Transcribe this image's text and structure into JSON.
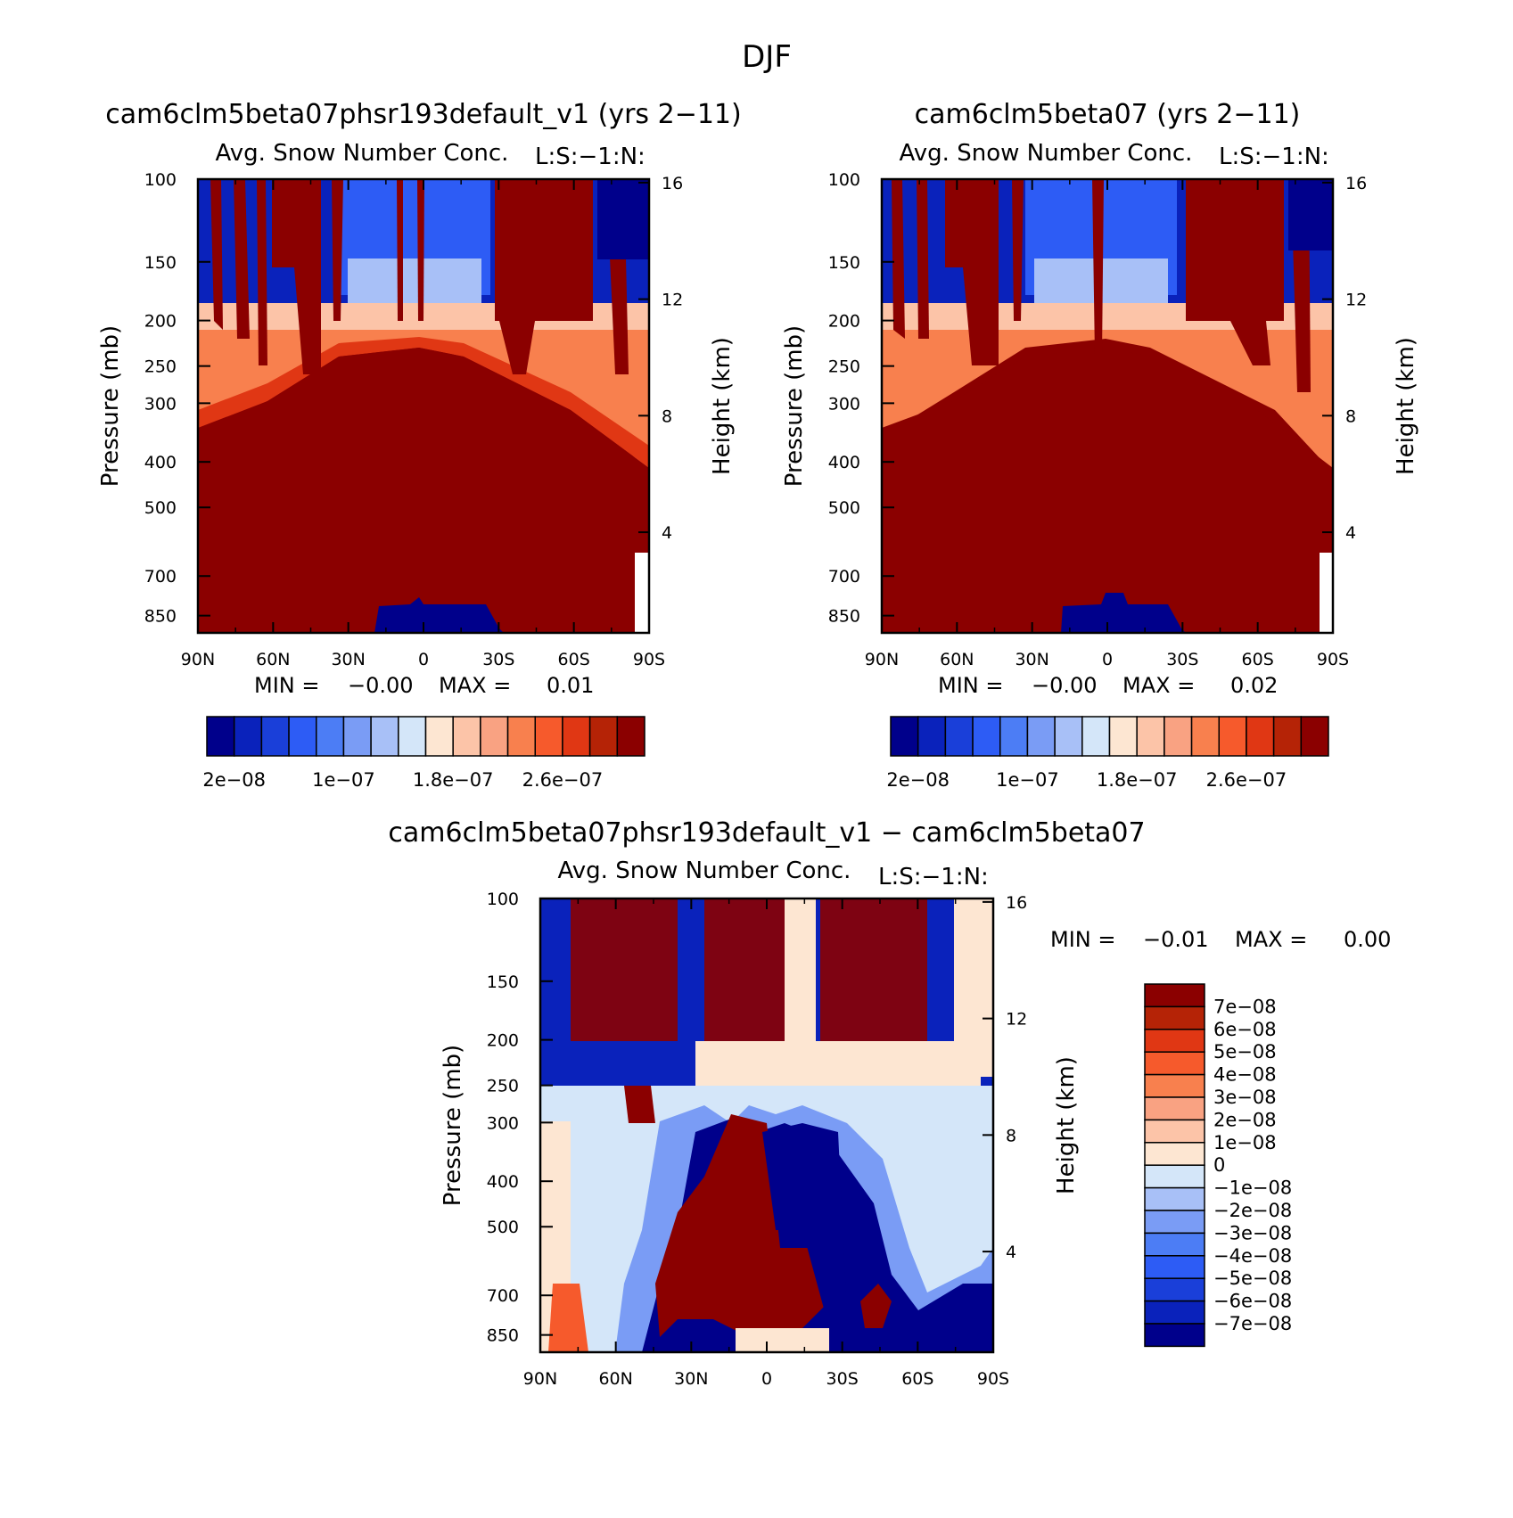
{
  "season": "DJF",
  "colors": {
    "scale": [
      "#00008b",
      "#0a22bb",
      "#1a3fd9",
      "#2d5cf5",
      "#4c7df5",
      "#7a9cf5",
      "#a8c0f7",
      "#d4e6f9",
      "#fde6d2",
      "#fcc4a8",
      "#f9a282",
      "#f8804e",
      "#f65a2c",
      "#e03714",
      "#b52306",
      "#8b0000"
    ]
  },
  "panels": [
    {
      "id": "left",
      "title": "cam6clm5beta07phsr193default_v1 (yrs 2−11)",
      "variable": "Avg. Snow Number Conc.",
      "level_tag": "L:S:−1:N:",
      "ylabel": "Pressure (mb)",
      "ylabel_right": "Height (km)",
      "min_label": "MIN =",
      "min_value": "−0.00",
      "max_label": "MAX =",
      "max_value": "0.01"
    },
    {
      "id": "right",
      "title": "cam6clm5beta07 (yrs 2−11)",
      "variable": "Avg. Snow Number Conc.",
      "level_tag": "L:S:−1:N:",
      "ylabel": "Pressure (mb)",
      "ylabel_right": "Height (km)",
      "min_label": "MIN =",
      "min_value": "−0.00",
      "max_label": "MAX =",
      "max_value": "0.02"
    },
    {
      "id": "diff",
      "title": "cam6clm5beta07phsr193default_v1 − cam6clm5beta07",
      "variable": "Avg. Snow Number Conc.",
      "level_tag": "L:S:−1:N:",
      "ylabel": "Pressure (mb)",
      "ylabel_right": "Height (km)",
      "min_label": "MIN =",
      "min_value": "−0.01",
      "max_label": "MAX =",
      "max_value": "0.00"
    }
  ],
  "axes": {
    "x_ticks": [
      "90N",
      "60N",
      "30N",
      "0",
      "30S",
      "60S",
      "90S"
    ],
    "x_values": [
      90,
      60,
      30,
      0,
      -30,
      -60,
      -90
    ],
    "p_ticks": [
      100,
      150,
      200,
      250,
      300,
      400,
      500,
      700,
      850
    ],
    "p_tick_labels": [
      "100",
      "150",
      "200",
      "250",
      "300",
      "400",
      "500",
      "700",
      "850"
    ],
    "p_range": [
      100,
      925
    ],
    "z_ticks": [
      16,
      12,
      8,
      4
    ],
    "z_tick_labels": [
      "16",
      "12",
      "8",
      "4"
    ]
  },
  "colorbar_abs": {
    "labels": [
      "2e−08",
      "1e−07",
      "1.8e−07",
      "2.6e−07"
    ],
    "label_boundary_index": [
      1,
      5,
      9,
      13
    ]
  },
  "colorbar_diff": {
    "labels": [
      "7e−08",
      "6e−08",
      "5e−08",
      "4e−08",
      "3e−08",
      "2e−08",
      "1e−08",
      "0",
      "−1e−08",
      "−2e−08",
      "−3e−08",
      "−4e−08",
      "−5e−08",
      "−6e−08",
      "−7e−08"
    ]
  },
  "chart_data": [
    {
      "type": "heatmap",
      "title": "cam6clm5beta07phsr193default_v1 (yrs 2−11)",
      "subtitle": "Avg. Snow Number Conc.",
      "xlabel": "",
      "ylabel": "Pressure (mb)",
      "y2label": "Height (km)",
      "x": [
        90,
        60,
        30,
        0,
        -30,
        -60,
        -90
      ],
      "ylim": [
        100,
        925
      ],
      "contour_levels": [
        2e-08,
        4e-08,
        6e-08,
        8e-08,
        1e-07,
        1.2e-07,
        1.4e-07,
        1.6e-07,
        1.8e-07,
        2e-07,
        2.2e-07,
        2.4e-07,
        2.6e-07,
        2.8e-07,
        3e-07
      ],
      "min": -0.0,
      "max": 0.01,
      "description_regions": {
        "above_200mb_polar": "mixed, lowest and highest values",
        "200_to_300mb": "increasing from 1.8e-07 to 3e-07",
        "below_300mb": "above 3e-07",
        "tropics_near_850mb": "below 2e-08"
      }
    },
    {
      "type": "heatmap",
      "title": "cam6clm5beta07 (yrs 2−11)",
      "subtitle": "Avg. Snow Number Conc.",
      "xlabel": "",
      "ylabel": "Pressure (mb)",
      "y2label": "Height (km)",
      "x": [
        90,
        60,
        30,
        0,
        -30,
        -60,
        -90
      ],
      "ylim": [
        100,
        925
      ],
      "contour_levels": [
        2e-08,
        4e-08,
        6e-08,
        8e-08,
        1e-07,
        1.2e-07,
        1.4e-07,
        1.6e-07,
        1.8e-07,
        2e-07,
        2.2e-07,
        2.4e-07,
        2.6e-07,
        2.8e-07,
        3e-07
      ],
      "min": -0.0,
      "max": 0.02
    },
    {
      "type": "heatmap",
      "title": "cam6clm5beta07phsr193default_v1 − cam6clm5beta07",
      "subtitle": "Avg. Snow Number Conc.",
      "xlabel": "",
      "ylabel": "Pressure (mb)",
      "y2label": "Height (km)",
      "x": [
        90,
        60,
        30,
        0,
        -30,
        -60,
        -90
      ],
      "ylim": [
        100,
        925
      ],
      "contour_levels": [
        -7e-08,
        -6e-08,
        -5e-08,
        -4e-08,
        -3e-08,
        -2e-08,
        -1e-08,
        0,
        1e-08,
        2e-08,
        3e-08,
        4e-08,
        5e-08,
        6e-08,
        7e-08
      ],
      "min": -0.01,
      "max": 0.0
    }
  ]
}
